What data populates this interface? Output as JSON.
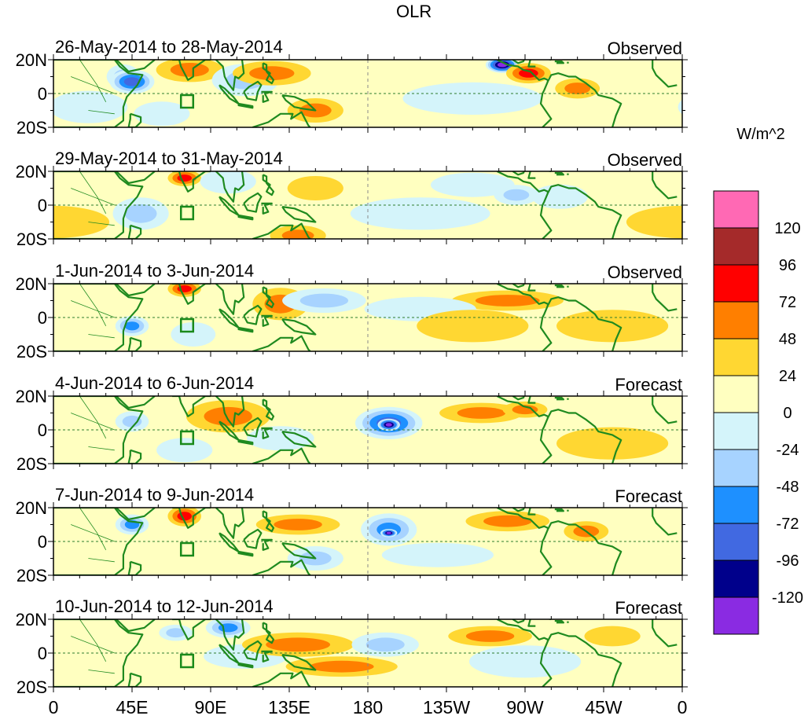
{
  "figure": {
    "title": "OLR",
    "units": "W/m^2",
    "colors": {
      "coast": "#1f8a1f",
      "grid": "#2e7d2e",
      "box": "#1a8a1a"
    }
  },
  "x_axis": {
    "ticks": [
      "0",
      "45E",
      "90E",
      "135E",
      "180",
      "135W",
      "90W",
      "45W",
      "0"
    ]
  },
  "y_axis": {
    "ticks": [
      "20N",
      "0",
      "20S"
    ]
  },
  "panels": [
    {
      "period": "26-May-2014 to 28-May-2014",
      "label": "Observed"
    },
    {
      "period": "29-May-2014 to 31-May-2014",
      "label": "Observed"
    },
    {
      "period": "1-Jun-2014 to 3-Jun-2014",
      "label": "Observed"
    },
    {
      "period": "4-Jun-2014 to 6-Jun-2014",
      "label": "Forecast"
    },
    {
      "period": "7-Jun-2014 to 9-Jun-2014",
      "label": "Forecast"
    },
    {
      "period": "10-Jun-2014 to 12-Jun-2014",
      "label": "Forecast"
    }
  ],
  "legend": {
    "colors": [
      "#ff69b4",
      "#a52a2a",
      "#ff0000",
      "#ff7f00",
      "#ffd732",
      "#ffffc0",
      "#d4f4fa",
      "#a7d3ff",
      "#1e90ff",
      "#4169e1",
      "#00008b",
      "#8a2be2"
    ],
    "labels": [
      "120",
      "96",
      "72",
      "48",
      "24",
      "0",
      "-24",
      "-48",
      "-72",
      "-96",
      "-120"
    ]
  },
  "anomaly_fields": [
    [
      [
        40,
        10,
        6,
        6,
        -2
      ],
      [
        45,
        7,
        8,
        6,
        -4
      ],
      [
        78,
        14,
        12,
        6,
        2
      ],
      [
        62,
        -12,
        10,
        6,
        -1
      ],
      [
        110,
        8,
        12,
        8,
        -2
      ],
      [
        125,
        12,
        14,
        6,
        2
      ],
      [
        150,
        -10,
        10,
        6,
        2
      ],
      [
        -103,
        17,
        6,
        4,
        -6
      ],
      [
        -88,
        12,
        8,
        5,
        3
      ],
      [
        -60,
        3,
        8,
        5,
        2
      ],
      [
        20,
        -8,
        14,
        8,
        -1
      ],
      [
        -120,
        -3,
        25,
        8,
        -1
      ]
    ],
    [
      [
        50,
        -5,
        10,
        8,
        -2
      ],
      [
        75,
        16,
        6,
        4,
        3
      ],
      [
        100,
        14,
        10,
        6,
        -1
      ],
      [
        150,
        10,
        10,
        6,
        1
      ],
      [
        -120,
        12,
        15,
        6,
        -1
      ],
      [
        -95,
        6,
        8,
        5,
        -2
      ],
      [
        -70,
        5,
        10,
        6,
        -1
      ],
      [
        0,
        -10,
        20,
        8,
        1
      ],
      [
        -150,
        -5,
        25,
        8,
        -1
      ],
      [
        140,
        -18,
        10,
        5,
        2
      ]
    ],
    [
      [
        45,
        -5,
        6,
        5,
        -3
      ],
      [
        75,
        17,
        6,
        4,
        3
      ],
      [
        130,
        8,
        10,
        8,
        2
      ],
      [
        155,
        10,
        15,
        6,
        -2
      ],
      [
        -100,
        10,
        20,
        5,
        2
      ],
      [
        -150,
        5,
        20,
        6,
        -1
      ],
      [
        -120,
        -5,
        20,
        8,
        1
      ],
      [
        80,
        -10,
        8,
        6,
        -1
      ],
      [
        -40,
        -5,
        20,
        8,
        1
      ]
    ],
    [
      [
        -168,
        4,
        12,
        8,
        -4
      ],
      [
        -168,
        3,
        4,
        3,
        -6
      ],
      [
        45,
        5,
        6,
        5,
        -2
      ],
      [
        100,
        8,
        15,
        8,
        2
      ],
      [
        -115,
        10,
        15,
        5,
        2
      ],
      [
        -90,
        12,
        8,
        4,
        2
      ],
      [
        75,
        -12,
        10,
        6,
        -1
      ],
      [
        130,
        -5,
        12,
        6,
        -1
      ],
      [
        -40,
        -8,
        20,
        8,
        1
      ]
    ],
    [
      [
        -168,
        7,
        10,
        8,
        -3
      ],
      [
        -168,
        5,
        3,
        2,
        -6
      ],
      [
        45,
        10,
        6,
        5,
        -3
      ],
      [
        75,
        15,
        6,
        5,
        3
      ],
      [
        140,
        10,
        15,
        5,
        2
      ],
      [
        150,
        -10,
        10,
        6,
        -2
      ],
      [
        -100,
        12,
        15,
        5,
        2
      ],
      [
        -55,
        6,
        8,
        5,
        2
      ],
      [
        -140,
        -8,
        20,
        6,
        -1
      ]
    ],
    [
      [
        70,
        12,
        6,
        4,
        -2
      ],
      [
        100,
        15,
        8,
        5,
        -3
      ],
      [
        110,
        -2,
        15,
        6,
        -1
      ],
      [
        140,
        5,
        20,
        6,
        2
      ],
      [
        165,
        -8,
        20,
        5,
        2
      ],
      [
        -170,
        5,
        12,
        6,
        -2
      ],
      [
        -110,
        10,
        15,
        5,
        2
      ],
      [
        -40,
        10,
        10,
        5,
        1
      ],
      [
        -90,
        -5,
        20,
        8,
        -1
      ]
    ]
  ]
}
